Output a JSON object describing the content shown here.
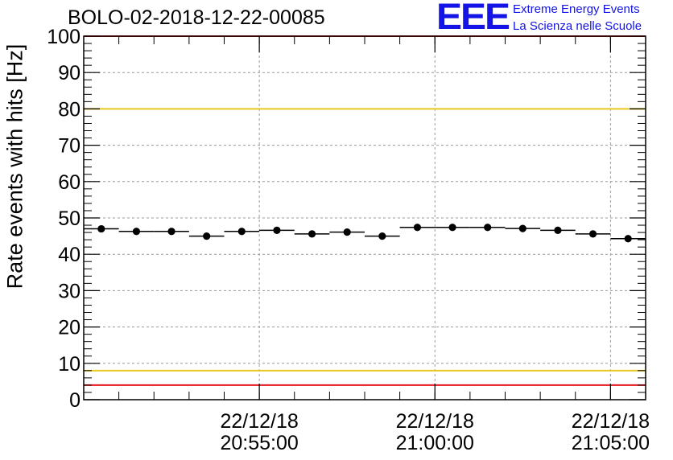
{
  "chart_data": {
    "type": "scatter",
    "title": "BOLO-02-2018-12-22-00085",
    "ylabel": "Rate events with hits [Hz]",
    "ylim": [
      0,
      100
    ],
    "yticks": [
      0,
      10,
      20,
      30,
      40,
      50,
      60,
      70,
      80,
      90,
      100
    ],
    "xlim": [
      "2018-12-22 20:50:00",
      "2018-12-22 21:06:00"
    ],
    "xticks": [
      {
        "date": "22/12/18",
        "time": "20:55:00",
        "value": "2018-12-22 20:55:00"
      },
      {
        "date": "22/12/18",
        "time": "21:00:00",
        "value": "2018-12-22 21:00:00"
      },
      {
        "date": "22/12/18",
        "time": "21:05:00",
        "value": "2018-12-22 21:05:00"
      }
    ],
    "grid": true,
    "bins": [
      {
        "start": "20:50:00",
        "end": "20:51:00",
        "y": 47.0
      },
      {
        "start": "20:51:00",
        "end": "20:52:00",
        "y": 46.3
      },
      {
        "start": "20:52:00",
        "end": "20:53:00",
        "y": 46.3
      },
      {
        "start": "20:53:00",
        "end": "20:54:00",
        "y": 45.0
      },
      {
        "start": "20:54:00",
        "end": "20:55:00",
        "y": 46.3
      },
      {
        "start": "20:55:00",
        "end": "20:56:00",
        "y": 46.6
      },
      {
        "start": "20:56:00",
        "end": "20:57:00",
        "y": 45.6
      },
      {
        "start": "20:57:00",
        "end": "20:58:00",
        "y": 46.1
      },
      {
        "start": "20:58:00",
        "end": "20:59:00",
        "y": 45.0
      },
      {
        "start": "20:59:00",
        "end": "21:00:00",
        "y": 47.4
      },
      {
        "start": "21:00:00",
        "end": "21:01:00",
        "y": 47.4
      },
      {
        "start": "21:01:00",
        "end": "21:02:00",
        "y": 47.4
      },
      {
        "start": "21:02:00",
        "end": "21:03:00",
        "y": 47.1
      },
      {
        "start": "21:03:00",
        "end": "21:04:00",
        "y": 46.6
      },
      {
        "start": "21:04:00",
        "end": "21:05:00",
        "y": 45.6
      },
      {
        "start": "21:05:00",
        "end": "21:06:00",
        "y": 44.3
      }
    ],
    "reference_lines": [
      {
        "y": 100,
        "color": "#e8141c"
      },
      {
        "y": 80,
        "color": "#e8c81e"
      },
      {
        "y": 8,
        "color": "#e8c81e"
      },
      {
        "y": 4,
        "color": "#e8141c"
      }
    ]
  },
  "logo": {
    "mark": "EEE",
    "line1": "Extreme Energy Events",
    "line2": "La Scienza nelle Scuole",
    "color": "#1414e6"
  }
}
